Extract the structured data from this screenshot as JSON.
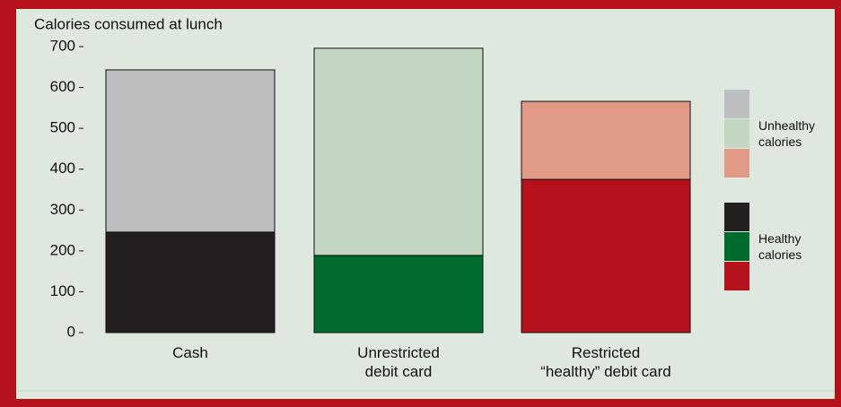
{
  "chart_data": {
    "type": "stacked_bar",
    "title": "Calories consumed at lunch",
    "categories": [
      [
        "Cash"
      ],
      [
        "Unrestricted",
        "debit card"
      ],
      [
        "Restricted",
        "“healthy” debit card"
      ]
    ],
    "series": [
      {
        "name": "Healthy calories",
        "colors": [
          "#231f20",
          "#006b2d",
          "#b5121b"
        ],
        "values": [
          246,
          189,
          375
        ]
      },
      {
        "name": "Unhealthy calories",
        "colors": [
          "#bcbec0",
          "#c2d6c1",
          "#e09a85"
        ],
        "values": [
          397,
          507,
          191
        ]
      }
    ],
    "ylim": [
      0,
      700
    ],
    "yticks": [
      0,
      100,
      200,
      300,
      400,
      500,
      600,
      700
    ],
    "legend": "right"
  }
}
